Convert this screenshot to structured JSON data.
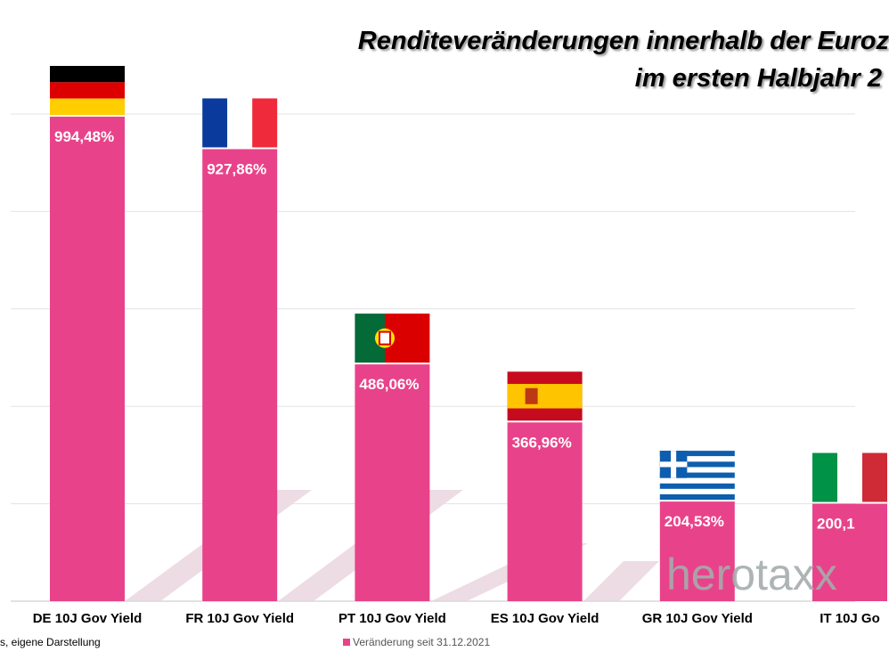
{
  "title_line1": "Renditeveränderungen innerhalb der Euroz",
  "title_line2": "im ersten Halbjahr 2",
  "source": "s, eigene Darstellung",
  "watermark": "herotaxx",
  "colors": {
    "bar": "#e8438a",
    "grid": "#d9d9d9",
    "watermark": "#a6acad"
  },
  "chart_data": {
    "type": "bar",
    "categories": [
      "DE 10J Gov Yield",
      "FR 10J Gov Yield",
      "PT 10J Gov Yield",
      "ES 10J Gov Yield",
      "GR 10J Gov Yield",
      "IT 10J Go"
    ],
    "flags": [
      "germany-flag",
      "france-flag",
      "portugal-flag",
      "spain-flag",
      "greece-flag",
      "italy-flag"
    ],
    "series": [
      {
        "name": "Veränderung seit 31.12.2021",
        "values": [
          994.48,
          927.86,
          486.06,
          366.96,
          204.53,
          200.1
        ],
        "labels": [
          "994,48%",
          "927,86%",
          "486,06%",
          "366,96%",
          "204,53%",
          "200,1"
        ]
      }
    ],
    "ylim": [
      0,
      1000
    ],
    "grid": true,
    "gridlines": [
      200,
      400,
      600,
      800,
      1000
    ],
    "legend": "bottom-center"
  }
}
